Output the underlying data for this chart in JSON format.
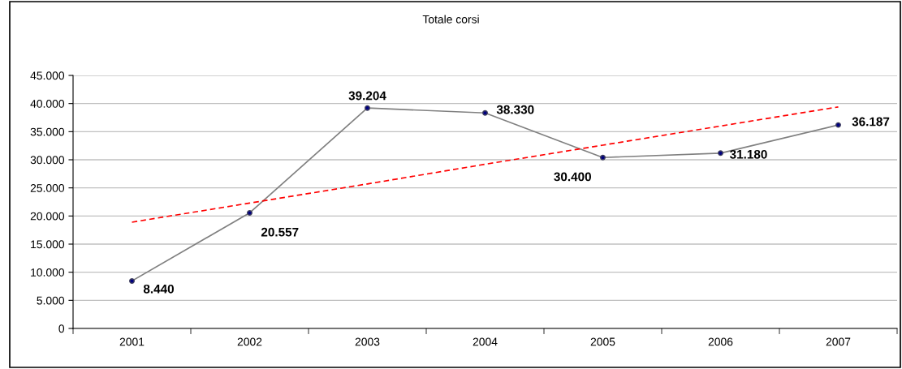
{
  "chart_data": {
    "type": "line",
    "title": "Totale corsi",
    "categories": [
      "2001",
      "2002",
      "2003",
      "2004",
      "2005",
      "2006",
      "2007"
    ],
    "series": [
      {
        "name": null,
        "color": "#808080",
        "values": [
          8440,
          20557,
          39204,
          38330,
          30400,
          31180,
          36187
        ],
        "marker": "circle",
        "line_style": "solid",
        "value_labels": [
          "8.440",
          "20.557",
          "39.204",
          "38.330",
          "30.400",
          "31.180",
          "36.187"
        ]
      },
      {
        "type": "line",
        "color": "#ff0000",
        "values": [
          18900,
          22300,
          25700,
          29200,
          32600,
          36000,
          39400
        ],
        "marker": "none",
        "line_style": "dashed"
      }
    ],
    "ylim": [
      0,
      45000
    ],
    "yticks": [
      {
        "value": 0,
        "label": "0"
      },
      {
        "value": 5000,
        "label": "5.000"
      },
      {
        "value": 10000,
        "label": "10.000"
      },
      {
        "value": 15000,
        "label": "15.000"
      },
      {
        "value": 20000,
        "label": "20.000"
      },
      {
        "value": 25000,
        "label": "25.000"
      },
      {
        "value": 30000,
        "label": "30.000"
      },
      {
        "value": 35000,
        "label": "35.000"
      },
      {
        "value": 40000,
        "label": "40.000"
      },
      {
        "value": 45000,
        "label": "45.000"
      }
    ],
    "grid": "y",
    "legend": false
  }
}
